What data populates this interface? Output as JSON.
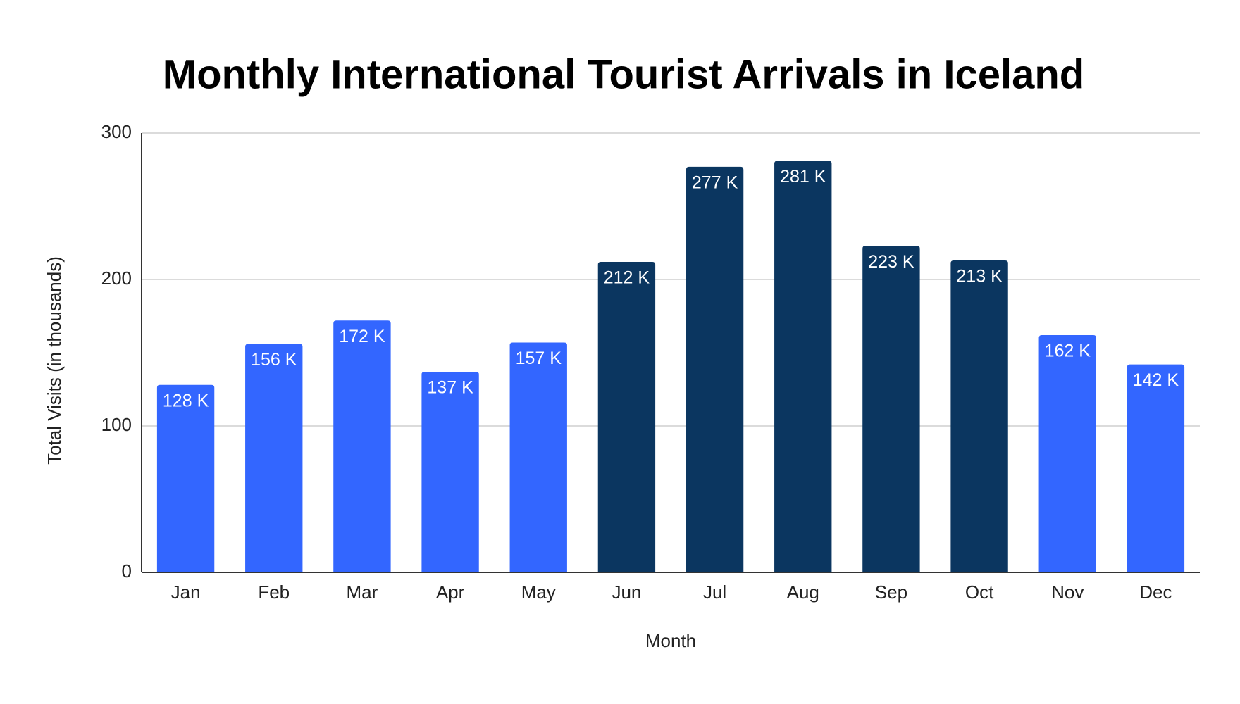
{
  "chart_data": {
    "type": "bar",
    "title": "Monthly International Tourist Arrivals in Iceland",
    "x_label": "Month",
    "y_label": "Total Visits (in thousands)",
    "categories": [
      "Jan",
      "Feb",
      "Mar",
      "Apr",
      "May",
      "Jun",
      "Jul",
      "Aug",
      "Sep",
      "Oct",
      "Nov",
      "Dec"
    ],
    "values": [
      128,
      156,
      172,
      137,
      157,
      212,
      277,
      281,
      223,
      213,
      162,
      142
    ],
    "value_labels": [
      "128 K",
      "156 K",
      "172 K",
      "137 K",
      "157 K",
      "212 K",
      "277 K",
      "281 K",
      "223 K",
      "213 K",
      "162 K",
      "142 K"
    ],
    "colors": [
      "#3366ff",
      "#3366ff",
      "#3366ff",
      "#3366ff",
      "#3366ff",
      "#0b3660",
      "#0b3660",
      "#0b3660",
      "#0b3660",
      "#0b3660",
      "#3366ff",
      "#3366ff"
    ],
    "ylim": [
      0,
      300
    ],
    "yticks": [
      0,
      100,
      200,
      300
    ],
    "grid": true
  }
}
